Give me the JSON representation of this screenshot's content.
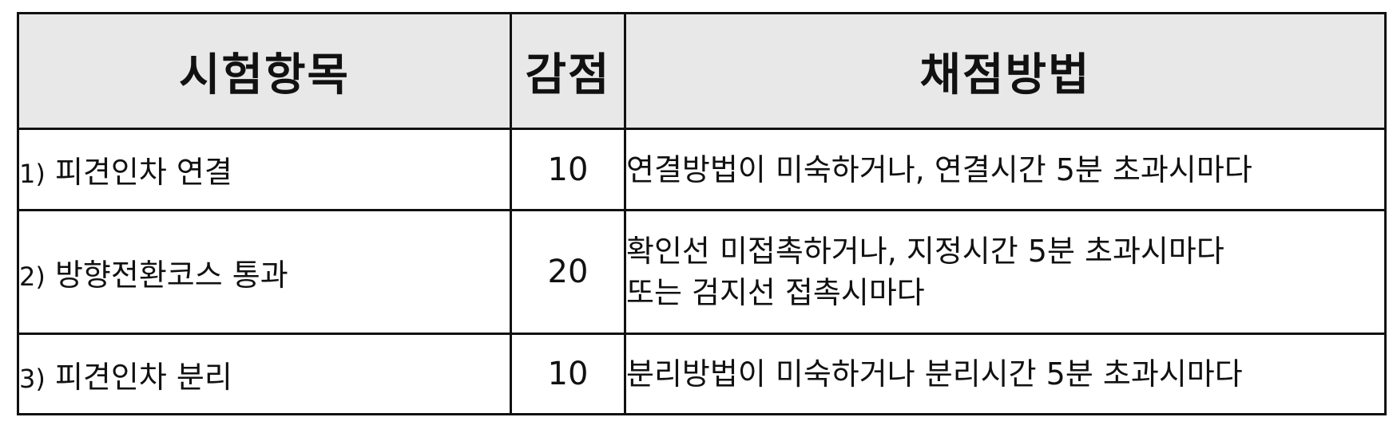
{
  "table": {
    "headers": {
      "item": "시험항목",
      "deduction": "감점",
      "method": "채점방법"
    },
    "rows": [
      {
        "num": "1)",
        "item": "피견인차 연결",
        "points": "10",
        "method_lines": [
          "연결방법이 미숙하거나, 연결시간 5분 초과시마다"
        ]
      },
      {
        "num": "2)",
        "item": "방향전환코스 통과",
        "points": "20",
        "method_lines": [
          "확인선 미접촉하거나, 지정시간 5분 초과시마다",
          "또는 검지선 접촉시마다"
        ]
      },
      {
        "num": "3)",
        "item": "피견인차 분리",
        "points": "10",
        "method_lines": [
          "분리방법이 미숙하거나 분리시간 5분 초과시마다"
        ]
      }
    ]
  }
}
